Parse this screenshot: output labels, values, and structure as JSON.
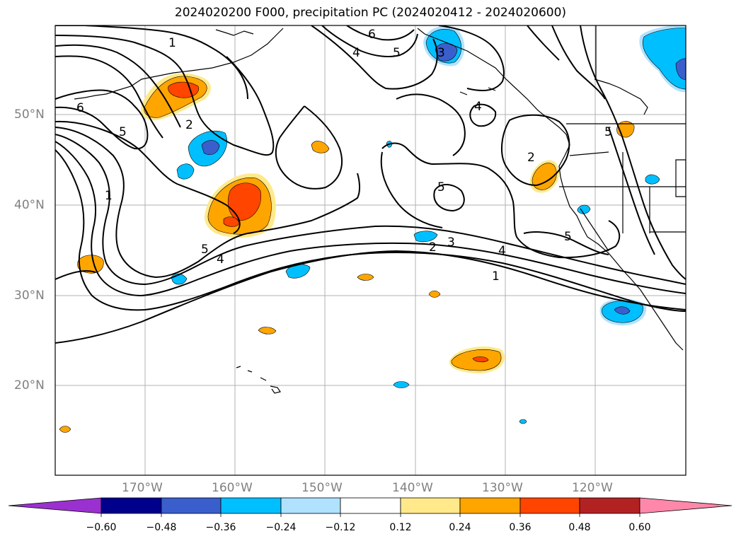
{
  "title": "2024020200 F000, precipitation PC (2024020412 - 2024020600)",
  "lat_labels": [
    "50°N",
    "40°N",
    "30°N",
    "20°N"
  ],
  "lon_labels": [
    "170°W",
    "160°W",
    "150°W",
    "140°W",
    "130°W",
    "120°W"
  ],
  "contour_labels": [
    "1",
    "6",
    "2",
    "4",
    "5",
    "6",
    "5",
    "3",
    "4",
    "2",
    "1",
    "5",
    "5",
    "2",
    "3",
    "4",
    "1",
    "5",
    "4",
    "5"
  ],
  "colorbar": {
    "ticks": [
      "−0.60",
      "−0.48",
      "−0.36",
      "−0.24",
      "−0.12",
      "0.12",
      "0.24",
      "0.36",
      "0.48",
      "0.60"
    ],
    "colors": [
      "#9b30d0",
      "#00008b",
      "#3a5fcd",
      "#00bfff",
      "#b0e2ff",
      "#ffffff",
      "#ffe98a",
      "#ffa500",
      "#ff4500",
      "#b22222",
      "#ff88aa"
    ]
  }
}
